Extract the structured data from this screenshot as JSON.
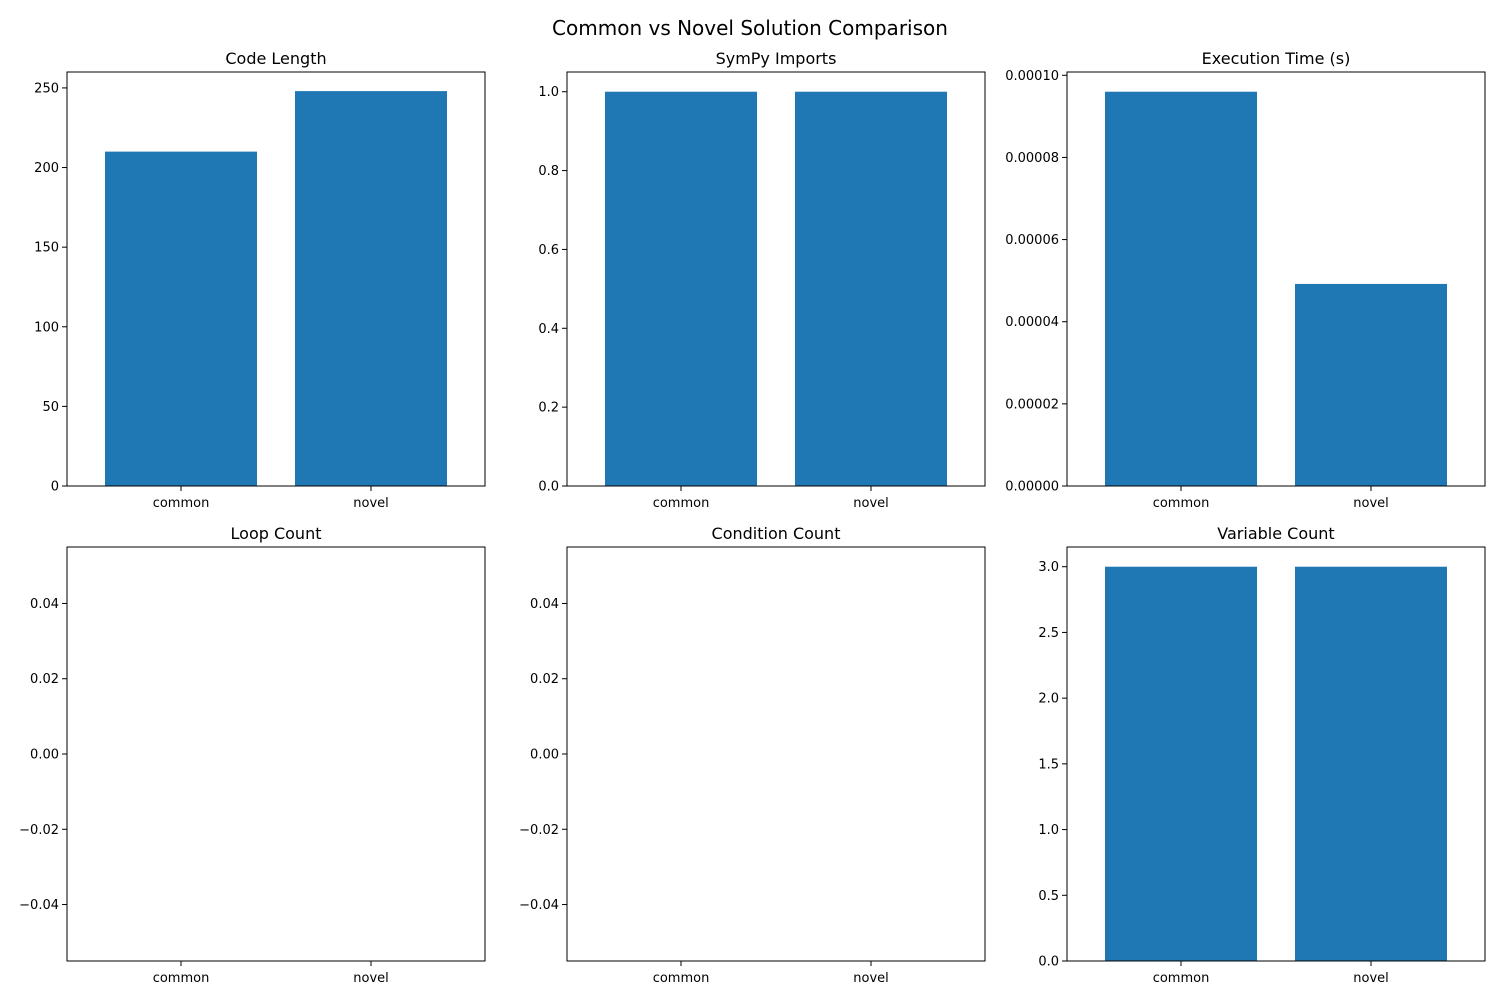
{
  "figure": {
    "title": "Common vs Novel Solution Comparison",
    "bar_color": "#1f77b4"
  },
  "chart_data": [
    {
      "type": "bar",
      "title": "Code Length",
      "categories": [
        "common",
        "novel"
      ],
      "values": [
        210,
        248
      ],
      "ylim": [
        0,
        260
      ],
      "yticks": [
        0,
        50,
        100,
        150,
        200,
        250
      ],
      "ytick_labels": [
        "0",
        "50",
        "100",
        "150",
        "200",
        "250"
      ],
      "xlabel": "",
      "ylabel": "",
      "grid": false
    },
    {
      "type": "bar",
      "title": "SymPy Imports",
      "categories": [
        "common",
        "novel"
      ],
      "values": [
        1,
        1
      ],
      "ylim": [
        0,
        1.05
      ],
      "yticks": [
        0,
        0.2,
        0.4,
        0.6,
        0.8,
        1.0
      ],
      "ytick_labels": [
        "0.0",
        "0.2",
        "0.4",
        "0.6",
        "0.8",
        "1.0"
      ],
      "xlabel": "",
      "ylabel": "",
      "grid": false
    },
    {
      "type": "bar",
      "title": "Execution Time (s)",
      "categories": [
        "common",
        "novel"
      ],
      "values": [
        9.6e-05,
        4.92e-05
      ],
      "ylim": [
        0,
        0.0001008
      ],
      "yticks": [
        0,
        2e-05,
        4e-05,
        6e-05,
        8e-05,
        0.0001
      ],
      "ytick_labels": [
        "0.00000",
        "0.00002",
        "0.00004",
        "0.00006",
        "0.00008",
        "0.00010"
      ],
      "xlabel": "",
      "ylabel": "",
      "grid": false
    },
    {
      "type": "bar",
      "title": "Loop Count",
      "categories": [
        "common",
        "novel"
      ],
      "values": [
        0,
        0
      ],
      "ylim": [
        -0.055,
        0.055
      ],
      "yticks": [
        -0.04,
        -0.02,
        0.0,
        0.02,
        0.04
      ],
      "ytick_labels": [
        "−0.04",
        "−0.02",
        "0.00",
        "0.02",
        "0.04"
      ],
      "xlabel": "",
      "ylabel": "",
      "grid": false
    },
    {
      "type": "bar",
      "title": "Condition Count",
      "categories": [
        "common",
        "novel"
      ],
      "values": [
        0,
        0
      ],
      "ylim": [
        -0.055,
        0.055
      ],
      "yticks": [
        -0.04,
        -0.02,
        0.0,
        0.02,
        0.04
      ],
      "ytick_labels": [
        "−0.04",
        "−0.02",
        "0.00",
        "0.02",
        "0.04"
      ],
      "xlabel": "",
      "ylabel": "",
      "grid": false
    },
    {
      "type": "bar",
      "title": "Variable Count",
      "categories": [
        "common",
        "novel"
      ],
      "values": [
        3,
        3
      ],
      "ylim": [
        0,
        3.15
      ],
      "yticks": [
        0,
        0.5,
        1.0,
        1.5,
        2.0,
        2.5,
        3.0
      ],
      "ytick_labels": [
        "0.0",
        "0.5",
        "1.0",
        "1.5",
        "2.0",
        "2.5",
        "3.0"
      ],
      "xlabel": "",
      "ylabel": "",
      "grid": false
    }
  ]
}
